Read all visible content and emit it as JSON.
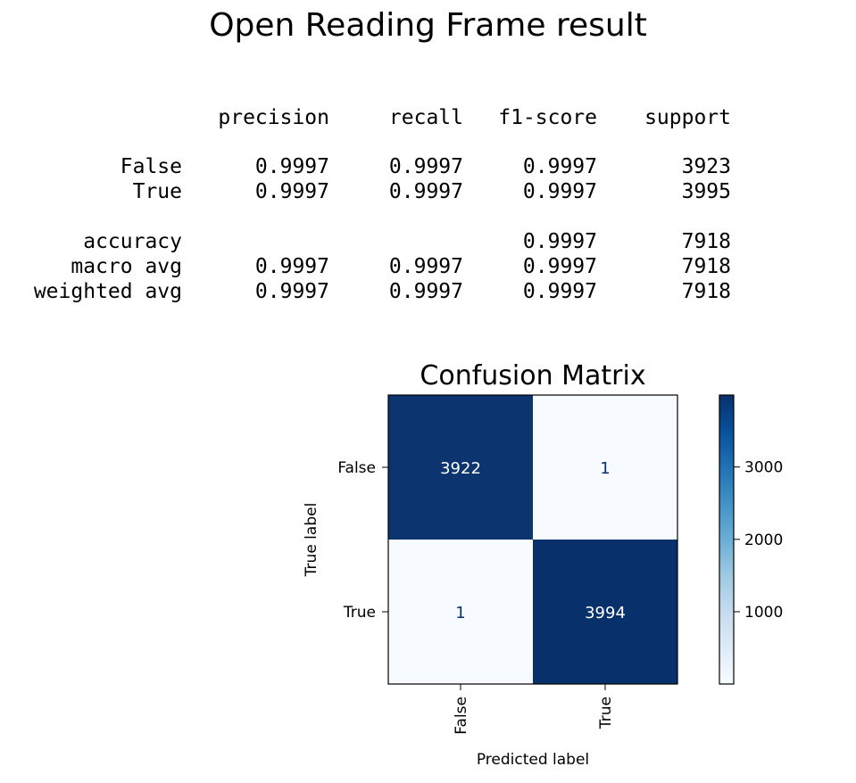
{
  "title": "Open Reading Frame result",
  "report": {
    "headers": [
      "precision",
      "recall",
      "f1-score",
      "support"
    ],
    "rows": [
      {
        "label": "False",
        "precision": "0.9997",
        "recall": "0.9997",
        "f1": "0.9997",
        "support": "3923"
      },
      {
        "label": "True",
        "precision": "0.9997",
        "recall": "0.9997",
        "f1": "0.9997",
        "support": "3995"
      },
      {
        "label": "accuracy",
        "precision": "",
        "recall": "",
        "f1": "0.9997",
        "support": "7918"
      },
      {
        "label": "macro avg",
        "precision": "0.9997",
        "recall": "0.9997",
        "f1": "0.9997",
        "support": "7918"
      },
      {
        "label": "weighted avg",
        "precision": "0.9997",
        "recall": "0.9997",
        "f1": "0.9997",
        "support": "7918"
      }
    ]
  },
  "chart_data": {
    "type": "heatmap",
    "title": "Confusion Matrix",
    "xlabel": "Predicted label",
    "ylabel": "True label",
    "x_categories": [
      "False",
      "True"
    ],
    "y_categories": [
      "False",
      "True"
    ],
    "values": [
      [
        3922,
        1
      ],
      [
        1,
        3994
      ]
    ],
    "colormap": "Blues",
    "colorbar_ticks": [
      1000,
      2000,
      3000
    ],
    "colorbar_range": [
      1,
      3994
    ],
    "colors": {
      "low": "#f7fbff",
      "high": "#08306b",
      "text_dark": "#ffffff",
      "text_light": "#08306b"
    }
  }
}
